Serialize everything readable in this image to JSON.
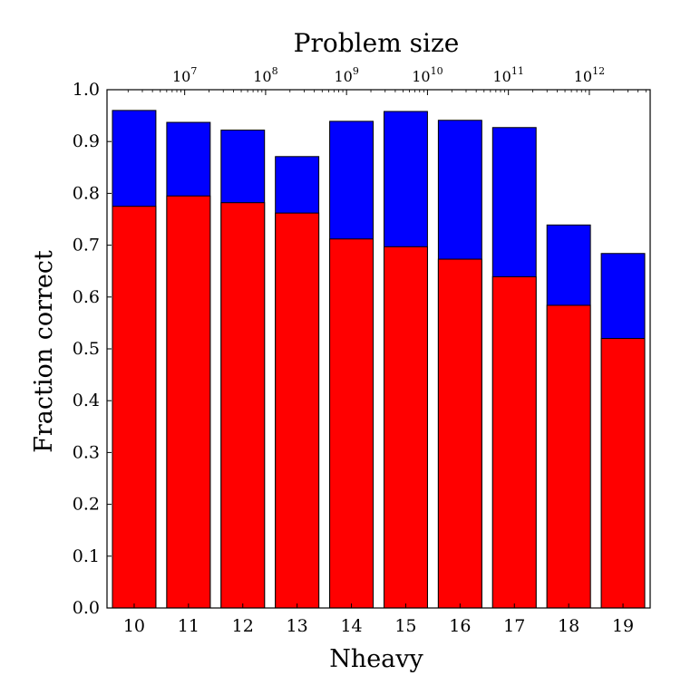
{
  "chart_data": {
    "type": "bar",
    "stacked": false,
    "xlabel": "Nheavy",
    "ylabel": "Fraction correct",
    "top_axis_label": "Problem size",
    "top_axis_scale": "log",
    "top_ticks": [
      {
        "base": "10",
        "exp": "7"
      },
      {
        "base": "10",
        "exp": "8"
      },
      {
        "base": "10",
        "exp": "9"
      },
      {
        "base": "10",
        "exp": "10"
      },
      {
        "base": "10",
        "exp": "11"
      },
      {
        "base": "10",
        "exp": "12"
      }
    ],
    "categories": [
      "10",
      "11",
      "12",
      "13",
      "14",
      "15",
      "16",
      "17",
      "18",
      "19"
    ],
    "ylim": [
      0.0,
      1.0
    ],
    "yticks": [
      "0.0",
      "0.1",
      "0.2",
      "0.3",
      "0.4",
      "0.5",
      "0.6",
      "0.7",
      "0.8",
      "0.9",
      "1.0"
    ],
    "grid": false,
    "series": [
      {
        "color": "#0000ff",
        "values": [
          0.96,
          0.937,
          0.922,
          0.871,
          0.939,
          0.958,
          0.941,
          0.927,
          0.739,
          0.684
        ]
      },
      {
        "color": "#ff0000",
        "values": [
          0.775,
          0.795,
          0.782,
          0.762,
          0.712,
          0.697,
          0.673,
          0.639,
          0.584,
          0.52
        ]
      }
    ]
  }
}
